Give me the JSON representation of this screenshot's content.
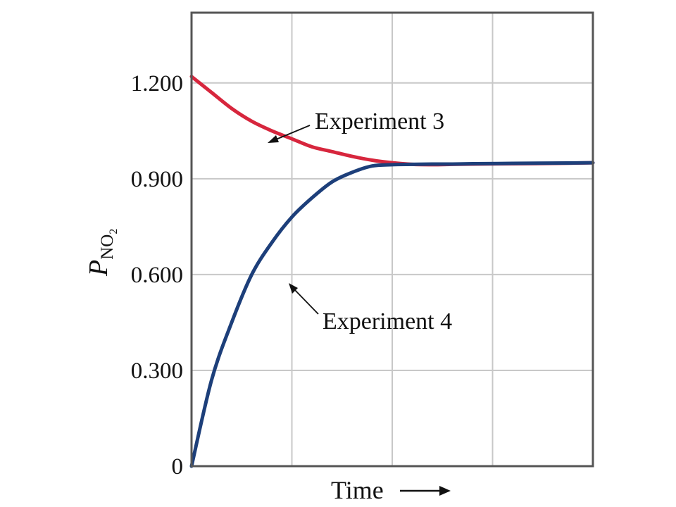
{
  "chart_data": {
    "type": "line",
    "title": "",
    "xlabel": "Time",
    "ylabel": "P",
    "ylabel_subscript": "NO",
    "ylabel_subsubscript": "2",
    "ylim": [
      0,
      1.42
    ],
    "yticks": [
      {
        "value": 0,
        "label": "0"
      },
      {
        "value": 0.3,
        "label": "0.300"
      },
      {
        "value": 0.6,
        "label": "0.600"
      },
      {
        "value": 0.9,
        "label": "0.900"
      },
      {
        "value": 1.2,
        "label": "1.200"
      }
    ],
    "xlim": [
      0,
      1
    ],
    "grid": true,
    "series": [
      {
        "name": "Experiment 3",
        "color": "#d7263d",
        "x": [
          0,
          0.05,
          0.1,
          0.15,
          0.2,
          0.25,
          0.3,
          0.35,
          0.4,
          0.45,
          0.5,
          0.55,
          0.6,
          0.65,
          0.7,
          0.8,
          0.9,
          1.0
        ],
        "y": [
          1.22,
          1.17,
          1.12,
          1.08,
          1.05,
          1.025,
          1.0,
          0.985,
          0.97,
          0.958,
          0.95,
          0.945,
          0.944,
          0.945,
          0.946,
          0.947,
          0.948,
          0.95
        ]
      },
      {
        "name": "Experiment 4",
        "color": "#1d3f7a",
        "x": [
          0,
          0.05,
          0.1,
          0.15,
          0.2,
          0.25,
          0.3,
          0.35,
          0.4,
          0.45,
          0.5,
          0.55,
          0.6,
          0.65,
          0.7,
          0.8,
          0.9,
          1.0
        ],
        "y": [
          0,
          0.27,
          0.45,
          0.6,
          0.7,
          0.78,
          0.84,
          0.89,
          0.92,
          0.94,
          0.944,
          0.945,
          0.946,
          0.946,
          0.947,
          0.948,
          0.949,
          0.95
        ]
      }
    ],
    "annotations": [
      {
        "text": "Experiment 3",
        "series": 0
      },
      {
        "text": "Experiment 4",
        "series": 1
      }
    ],
    "x_arrow": "→"
  }
}
